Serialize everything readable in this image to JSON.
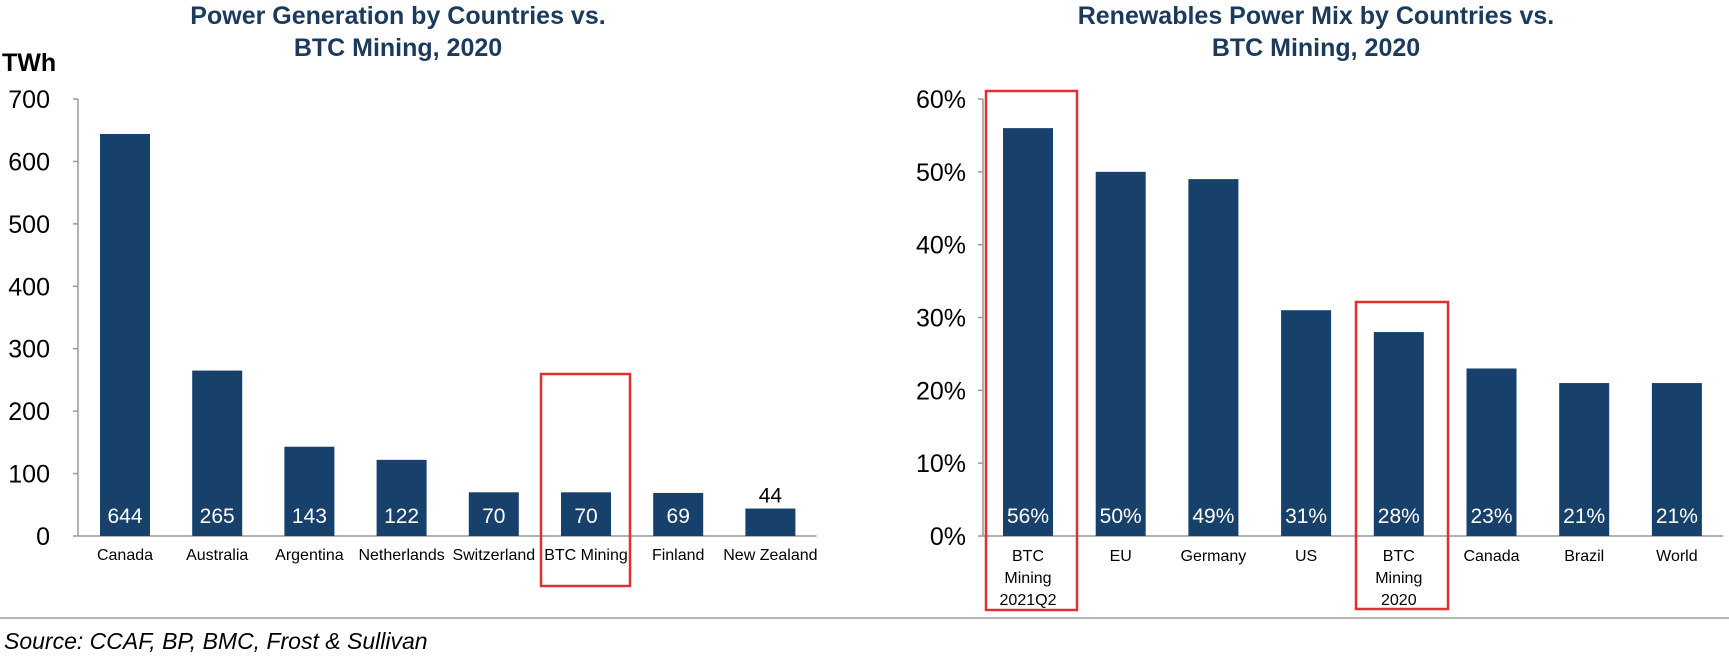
{
  "colors": {
    "bar": "#17406b",
    "title": "#1b3a5c",
    "axis": "#999999",
    "highlight_box": "#e03030",
    "divider": "#9a9a9a"
  },
  "chart_data": [
    {
      "type": "bar",
      "title": "Power Generation by Countries vs. BTC Mining, 2020",
      "title_lines": [
        "Power Generation by Countries vs.",
        "BTC Mining, 2020"
      ],
      "unit_label": "TWh",
      "categories": [
        "Canada",
        "Australia",
        "Argentina",
        "Netherlands",
        "Switzerland",
        "BTC Mining",
        "Finland",
        "New Zealand"
      ],
      "category_lines": [
        [
          "Canada"
        ],
        [
          "Australia"
        ],
        [
          "Argentina"
        ],
        [
          "Netherlands"
        ],
        [
          "Switzerland"
        ],
        [
          "BTC Mining"
        ],
        [
          "Finland"
        ],
        [
          "New Zealand"
        ]
      ],
      "values": [
        644,
        265,
        143,
        122,
        70,
        70,
        69,
        44
      ],
      "value_labels": [
        "644",
        "265",
        "143",
        "122",
        "70",
        "70",
        "69",
        "44"
      ],
      "ylim": [
        0,
        700
      ],
      "yticks": [
        0,
        100,
        200,
        300,
        400,
        500,
        600,
        700
      ],
      "ytick_labels": [
        "0",
        "100",
        "200",
        "300",
        "400",
        "500",
        "600",
        "700"
      ],
      "highlighted": [
        "BTC Mining"
      ],
      "grid": false,
      "legend": "none"
    },
    {
      "type": "bar",
      "title": "Renewables Power Mix by Countries vs. BTC Mining, 2020",
      "title_lines": [
        "Renewables Power Mix by Countries vs.",
        "BTC Mining, 2020"
      ],
      "unit_label": "",
      "categories": [
        "BTC Mining 2021Q2",
        "EU",
        "Germany",
        "US",
        "BTC Mining 2020",
        "Canada",
        "Brazil",
        "World"
      ],
      "category_lines": [
        [
          "BTC",
          "Mining",
          "2021Q2"
        ],
        [
          "EU"
        ],
        [
          "Germany"
        ],
        [
          "US"
        ],
        [
          "BTC",
          "Mining",
          "2020"
        ],
        [
          "Canada"
        ],
        [
          "Brazil"
        ],
        [
          "World"
        ]
      ],
      "values": [
        56,
        50,
        49,
        31,
        28,
        23,
        21,
        21
      ],
      "value_labels": [
        "56%",
        "50%",
        "49%",
        "31%",
        "28%",
        "23%",
        "21%",
        "21%"
      ],
      "ylim": [
        0,
        60
      ],
      "yticks": [
        0,
        10,
        20,
        30,
        40,
        50,
        60
      ],
      "ytick_labels": [
        "0%",
        "10%",
        "20%",
        "30%",
        "40%",
        "50%",
        "60%"
      ],
      "highlighted": [
        "BTC Mining 2021Q2",
        "BTC Mining 2020"
      ],
      "grid": false,
      "legend": "none"
    }
  ],
  "source": "Source: CCAF, BP, BMC, Frost & Sullivan"
}
